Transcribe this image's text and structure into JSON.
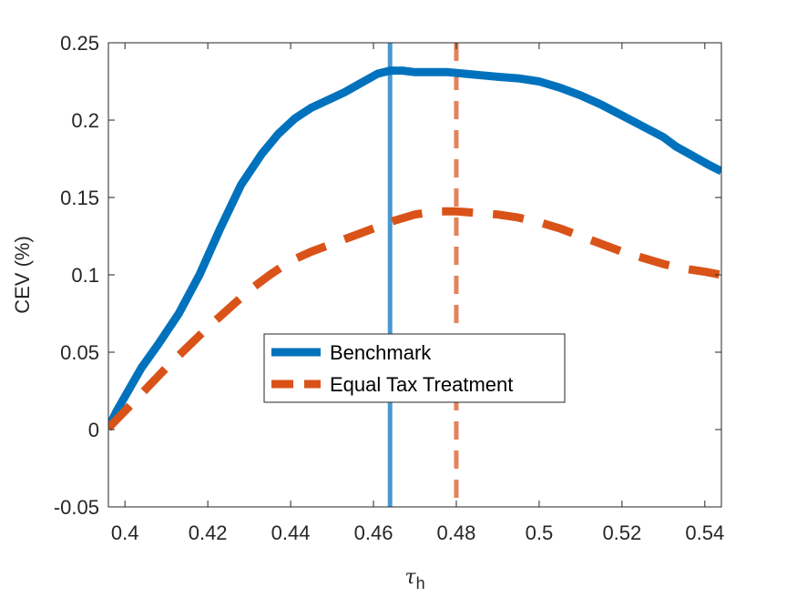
{
  "chart_data": {
    "type": "line",
    "xlabel": "τ",
    "xlabel_sub": "h",
    "ylabel": "CEV (%)",
    "xlim": [
      0.396,
      0.544
    ],
    "ylim": [
      -0.05,
      0.25
    ],
    "x_ticks": [
      0.4,
      0.42,
      0.44,
      0.46,
      0.48,
      0.5,
      0.52,
      0.54
    ],
    "x_tick_labels": [
      "0.4",
      "0.42",
      "0.44",
      "0.46",
      "0.48",
      "0.5",
      "0.52",
      "0.54"
    ],
    "y_ticks": [
      -0.05,
      0,
      0.05,
      0.1,
      0.15,
      0.2,
      0.25
    ],
    "y_tick_labels": [
      "-0.05",
      "0",
      "0.05",
      "0.1",
      "0.15",
      "0.2",
      "0.25"
    ],
    "grid": false,
    "legend_position": "center-left",
    "series": [
      {
        "name": "Benchmark",
        "color": "#0072BD",
        "style": "solid",
        "x": [
          0.396,
          0.398,
          0.401,
          0.404,
          0.408,
          0.413,
          0.418,
          0.423,
          0.428,
          0.433,
          0.437,
          0.441,
          0.445,
          0.449,
          0.453,
          0.457,
          0.461,
          0.464,
          0.467,
          0.47,
          0.474,
          0.478,
          0.482,
          0.486,
          0.49,
          0.495,
          0.5,
          0.505,
          0.51,
          0.515,
          0.52,
          0.525,
          0.53,
          0.533,
          0.537,
          0.541,
          0.544
        ],
        "y": [
          0.001,
          0.012,
          0.026,
          0.04,
          0.055,
          0.075,
          0.1,
          0.13,
          0.158,
          0.178,
          0.191,
          0.201,
          0.208,
          0.213,
          0.218,
          0.224,
          0.23,
          0.232,
          0.232,
          0.231,
          0.231,
          0.231,
          0.23,
          0.229,
          0.228,
          0.227,
          0.225,
          0.221,
          0.216,
          0.21,
          0.203,
          0.196,
          0.189,
          0.183,
          0.177,
          0.171,
          0.167
        ]
      },
      {
        "name": "Equal Tax Treatment",
        "color": "#D95319",
        "style": "dashed",
        "x": [
          0.396,
          0.4,
          0.405,
          0.41,
          0.415,
          0.42,
          0.425,
          0.43,
          0.435,
          0.44,
          0.445,
          0.45,
          0.455,
          0.46,
          0.465,
          0.47,
          0.475,
          0.48,
          0.485,
          0.49,
          0.495,
          0.5,
          0.505,
          0.51,
          0.515,
          0.52,
          0.525,
          0.53,
          0.535,
          0.54,
          0.544
        ],
        "y": [
          0.001,
          0.012,
          0.026,
          0.04,
          0.053,
          0.066,
          0.078,
          0.09,
          0.1,
          0.109,
          0.115,
          0.12,
          0.125,
          0.13,
          0.135,
          0.139,
          0.141,
          0.141,
          0.14,
          0.139,
          0.137,
          0.134,
          0.13,
          0.125,
          0.12,
          0.115,
          0.111,
          0.107,
          0.104,
          0.102,
          0.1
        ]
      }
    ],
    "vlines": [
      {
        "x": 0.464,
        "color": "#0072BD",
        "style": "solid"
      },
      {
        "x": 0.48,
        "color": "#D95319",
        "style": "dashed"
      }
    ]
  }
}
